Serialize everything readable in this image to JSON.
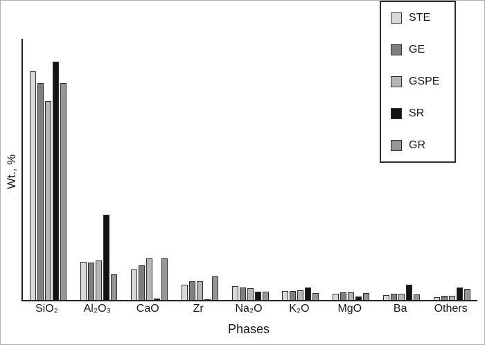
{
  "chart_data": {
    "type": "bar",
    "title": "",
    "xlabel": "Phases",
    "ylabel": "Wt., %",
    "ylim": [
      0,
      80
    ],
    "grid": false,
    "legend_position": "top-right",
    "categories": [
      "SiO₂",
      "Al₂O₃",
      "CaO",
      "Zr",
      "Na₂O",
      "K₂O",
      "MgO",
      "Ba",
      "Others"
    ],
    "series": [
      {
        "name": "STE",
        "color": "#d9d9d9",
        "values": [
          70.0,
          11.7,
          9.3,
          4.7,
          4.2,
          2.8,
          1.9,
          1.5,
          0.8
        ]
      },
      {
        "name": "GE",
        "color": "#7f7f7f",
        "values": [
          66.5,
          11.5,
          10.6,
          5.7,
          3.8,
          2.8,
          2.3,
          1.9,
          1.3
        ]
      },
      {
        "name": "GSPE",
        "color": "#b5b5b5",
        "values": [
          61.0,
          12.0,
          12.7,
          5.7,
          3.6,
          3.0,
          2.3,
          1.9,
          1.3
        ]
      },
      {
        "name": "SR",
        "color": "#141414",
        "values": [
          73.0,
          26.0,
          0.4,
          0.3,
          2.5,
          3.8,
          1.1,
          4.7,
          3.8
        ]
      },
      {
        "name": "GR",
        "color": "#969696",
        "values": [
          66.5,
          7.8,
          12.7,
          7.2,
          2.5,
          2.1,
          2.1,
          1.7,
          3.4
        ]
      }
    ]
  }
}
